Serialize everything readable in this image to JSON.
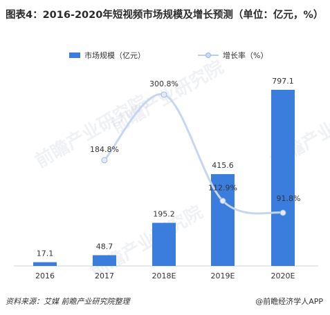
{
  "title": "图表4：2016-2020年短视频市场规模及增长预测（单位：亿元，%）",
  "legend": {
    "bar_label": "市场规模（亿元）",
    "line_label": "增长率（%）"
  },
  "watermarks": [
    "前瞻产业研究院",
    "前瞻产业研究院",
    "前瞻产业研究院",
    "前瞻产业研究院"
  ],
  "footer": {
    "source": "资料来源：艾媒  前瞻产业研究院整理",
    "brand": "@前瞻经济学人APP"
  },
  "colors": {
    "bar": "#3b7ddd",
    "line": "#c5d6f2",
    "axis": "#d0d0d0"
  },
  "chart_data": {
    "type": "bar",
    "categories": [
      "2016",
      "2017",
      "2018E",
      "2019E",
      "2020E"
    ],
    "series": [
      {
        "name": "市场规模（亿元）",
        "type": "bar",
        "values": [
          17.1,
          48.7,
          195.2,
          415.6,
          797.1
        ],
        "labels": [
          "17.1",
          "48.7",
          "195.2",
          "415.6",
          "797.1"
        ]
      },
      {
        "name": "增长率（%）",
        "type": "line",
        "smooth": true,
        "values": [
          null,
          184.8,
          300.8,
          112.9,
          91.8
        ],
        "labels": [
          "",
          "184.8%",
          "300.8%",
          "112.9%",
          "91.8%"
        ]
      }
    ],
    "legend_position": "top",
    "grid": false
  }
}
